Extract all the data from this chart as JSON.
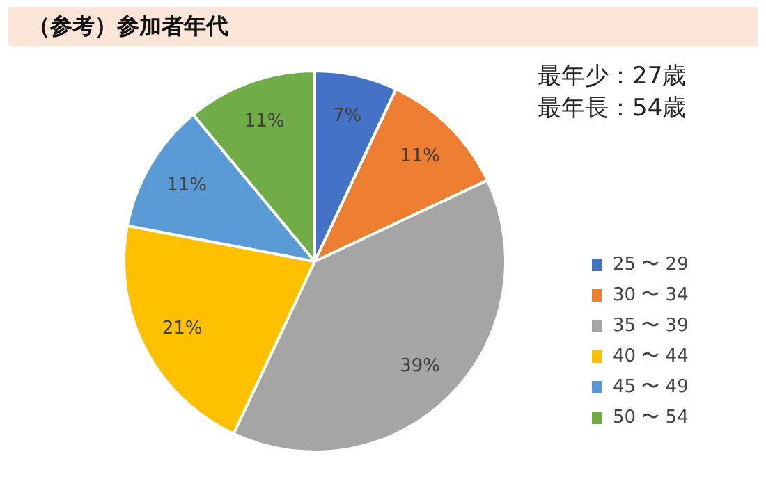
{
  "chart_data": {
    "type": "pie",
    "title": "（参考）参加者年代",
    "categories": [
      "25 〜 29",
      "30 〜 34",
      "35 〜 39",
      "40 〜 44",
      "45 〜 49",
      "50 〜 54"
    ],
    "values": [
      7,
      11,
      39,
      21,
      11,
      11
    ],
    "colors": [
      "#4472c4",
      "#ed7d31",
      "#a5a5a5",
      "#ffc000",
      "#5b9bd5",
      "#70ad47"
    ],
    "value_labels": [
      "7%",
      "11%",
      "39%",
      "21%",
      "11%",
      "11%"
    ],
    "annotations": [
      "最年少：27歳",
      "最年長：54歳"
    ],
    "legend": "right"
  }
}
